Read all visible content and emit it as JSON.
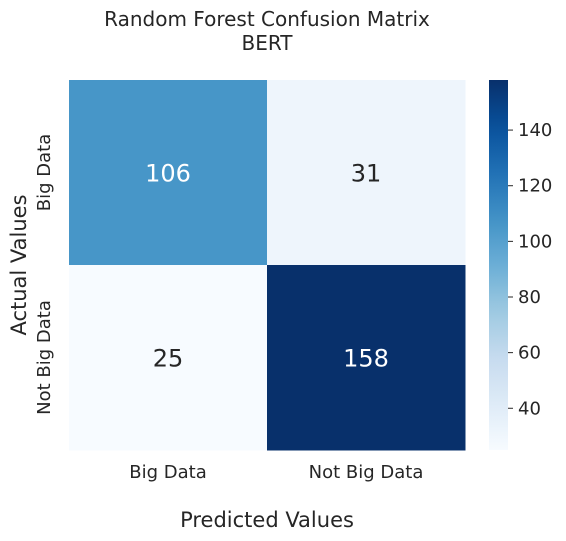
{
  "chart_data": {
    "type": "heatmap",
    "title": "Random Forest Confusion Matrix",
    "subtitle": "BERT",
    "xlabel": "Predicted Values",
    "ylabel": "Actual Values",
    "x_categories": [
      "Big Data",
      "Not Big Data"
    ],
    "y_categories": [
      "Big Data",
      "Not Big Data"
    ],
    "values": [
      [
        106,
        31
      ],
      [
        25,
        158
      ]
    ],
    "colormap": "Blues",
    "value_range": [
      25,
      158
    ],
    "colorbar_ticks": [
      40,
      60,
      80,
      100,
      120,
      140
    ]
  }
}
